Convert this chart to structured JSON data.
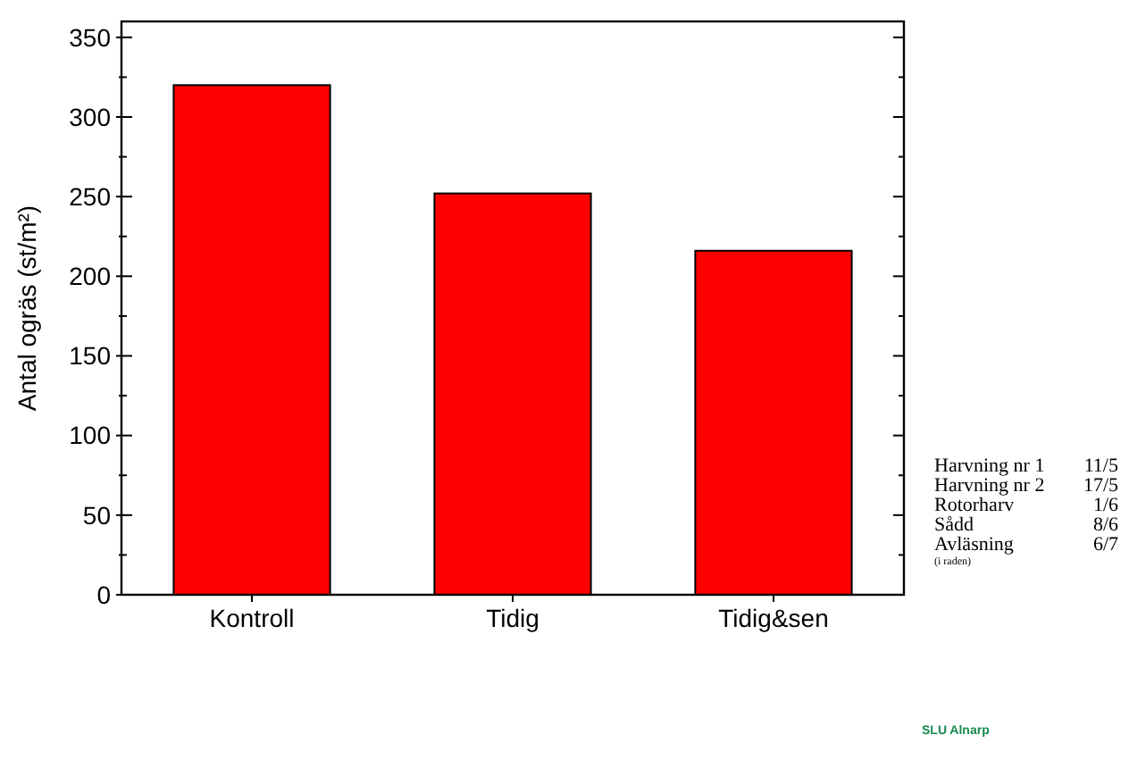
{
  "chart_data": {
    "type": "bar",
    "ylabel": "Antal ogräs (st/m²)",
    "categories": [
      "Kontroll",
      "Tidig",
      "Tidig&sen"
    ],
    "values": [
      320,
      252,
      216
    ],
    "color": "#ff0000",
    "ylim": [
      0,
      360
    ],
    "yticks": [
      0,
      {
        "value": 25,
        "label": null
      },
      50,
      {
        "value": 75,
        "label": null
      },
      100,
      {
        "value": 125,
        "label": null
      },
      150,
      {
        "value": 175,
        "label": null
      },
      200,
      {
        "value": 225,
        "label": null
      },
      250,
      {
        "value": 275,
        "label": null
      },
      300,
      {
        "value": 325,
        "label": null
      },
      350
    ],
    "annotations": [
      "Harvning nr 1 11/5",
      "Harvning nr 2 17/5",
      "Rotorharv 1/6",
      "Sådd 8/6",
      "Avläsning 6/7",
      "(i raden)",
      "SLU Alnarp"
    ]
  }
}
